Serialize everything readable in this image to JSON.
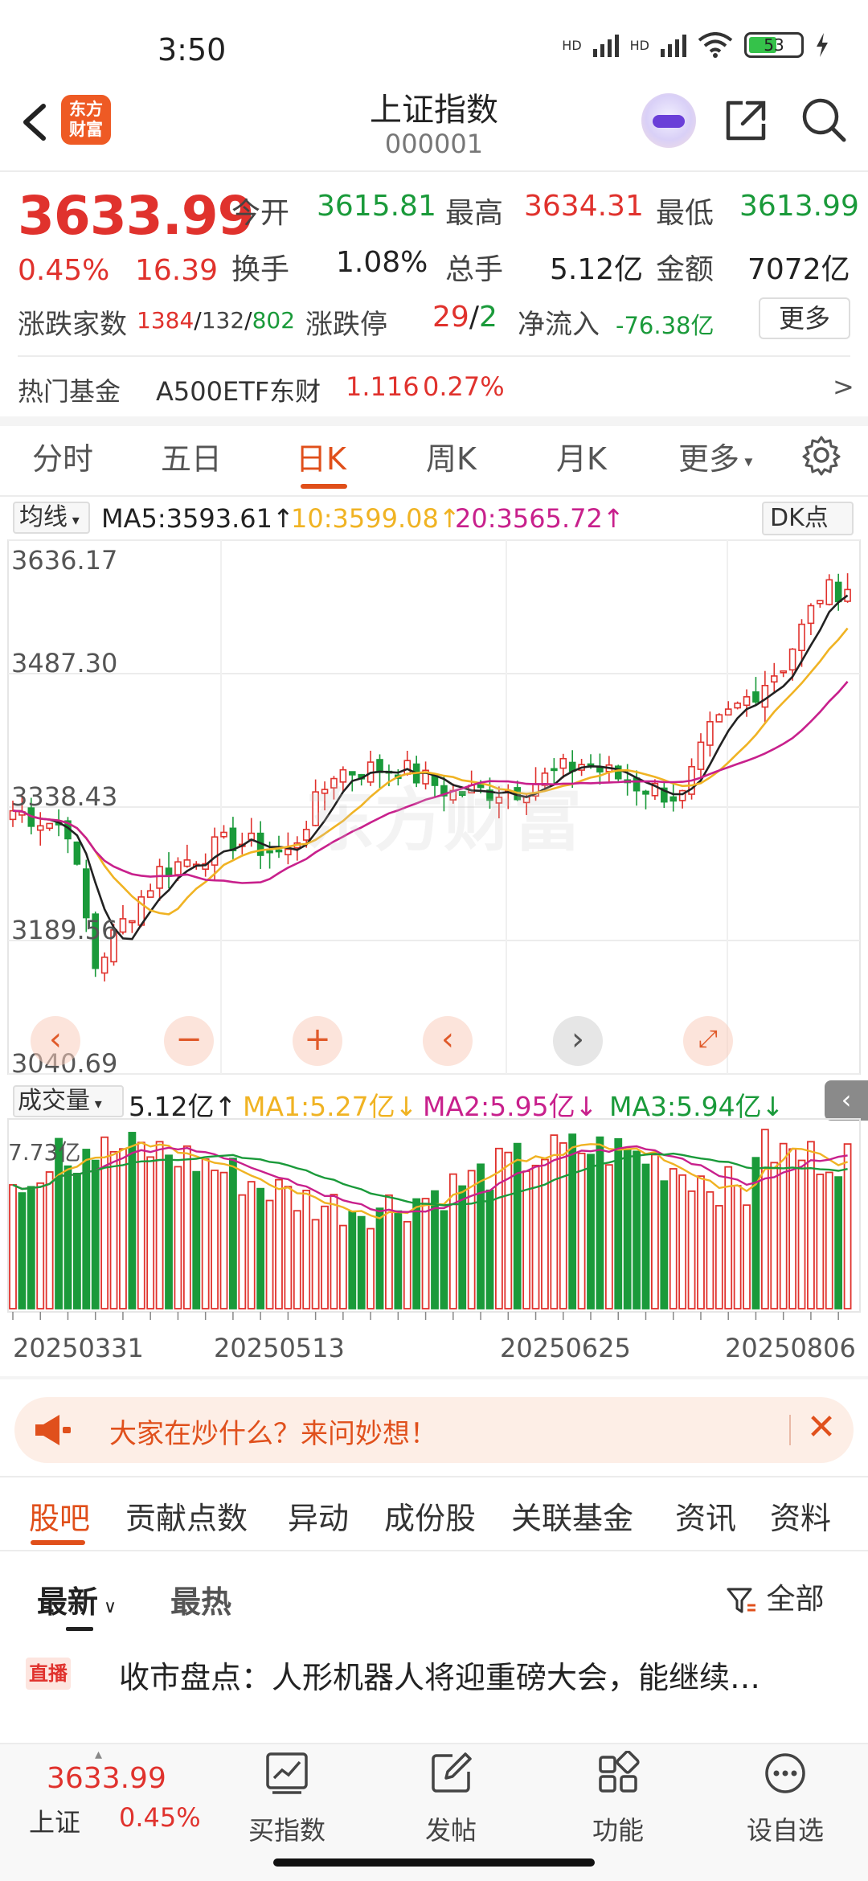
{
  "status_bar": {
    "time": "3:50",
    "net1": "HD",
    "net2": "HD",
    "battery": "53"
  },
  "header": {
    "logo_text_1": "东方",
    "logo_text_2": "财富",
    "title": "上证指数",
    "code": "000001"
  },
  "quote": {
    "price": "3633.99",
    "change_pct": "0.45%",
    "change": "16.39",
    "open_label": "今开",
    "open": "3615.81",
    "high_label": "最高",
    "high": "3634.31",
    "low_label": "最低",
    "low": "3613.99",
    "turnover_label": "换手",
    "turnover": "1.08%",
    "volume_label": "总手",
    "volume": "5.12亿",
    "amount_label": "金额",
    "amount": "7072亿",
    "breadth_label": "涨跌家数",
    "up_count": "1384",
    "flat_count": "132",
    "down_count": "802",
    "sep": "/",
    "limit_label": "涨跌停",
    "limit_up": "29",
    "limit_down": "2",
    "inflow_label": "净流入",
    "inflow": "-76.38亿",
    "more_label": "更多"
  },
  "hot_fund": {
    "label": "热门基金",
    "name": "A500ETF东财",
    "price": "1.116",
    "pct": "0.27%",
    "arrow": ">"
  },
  "period_tabs": [
    "分时",
    "五日",
    "日K",
    "周K",
    "月K",
    "更多"
  ],
  "ma_row": {
    "selector": "均线",
    "ma5": "MA5:3593.61↑",
    "ma10": "10:3599.08↑",
    "ma20": "20:3565.72↑",
    "dk": "DK点"
  },
  "k_chart": {
    "y_labels": [
      "3636.17",
      "3487.30",
      "3338.43",
      "3189.56",
      "3040.69"
    ],
    "watermark": "东方财富",
    "colors": {
      "up": "#e0322d",
      "down": "#1a9a3a",
      "ma5": "#222222",
      "ma10": "#f0b323",
      "ma20": "#c8208c"
    }
  },
  "vol_row": {
    "selector": "成交量",
    "value": "5.12亿↑",
    "ma1": "MA1:5.27亿↓",
    "ma2": "MA2:5.95亿↓",
    "ma3": "MA3:5.94亿↓",
    "max_label": "7.73亿"
  },
  "dates": [
    "20250331",
    "20250513",
    "20250625",
    "20250806"
  ],
  "banner": {
    "text": "大家在炒什么？来问妙想！"
  },
  "bottom_tabs": [
    "股吧",
    "贡献点数",
    "异动",
    "成份股",
    "关联基金",
    "资讯",
    "资料"
  ],
  "sort": {
    "latest": "最新",
    "hot": "最热",
    "filter": "全部"
  },
  "news": {
    "badge": "直播",
    "title": "收市盘点：人形机器人将迎重磅大会，能继续…"
  },
  "nav": {
    "mini_price": "3633.99",
    "mini_name": "上证",
    "mini_pct": "0.45%",
    "items": [
      "买指数",
      "发帖",
      "功能",
      "设自选"
    ]
  }
}
